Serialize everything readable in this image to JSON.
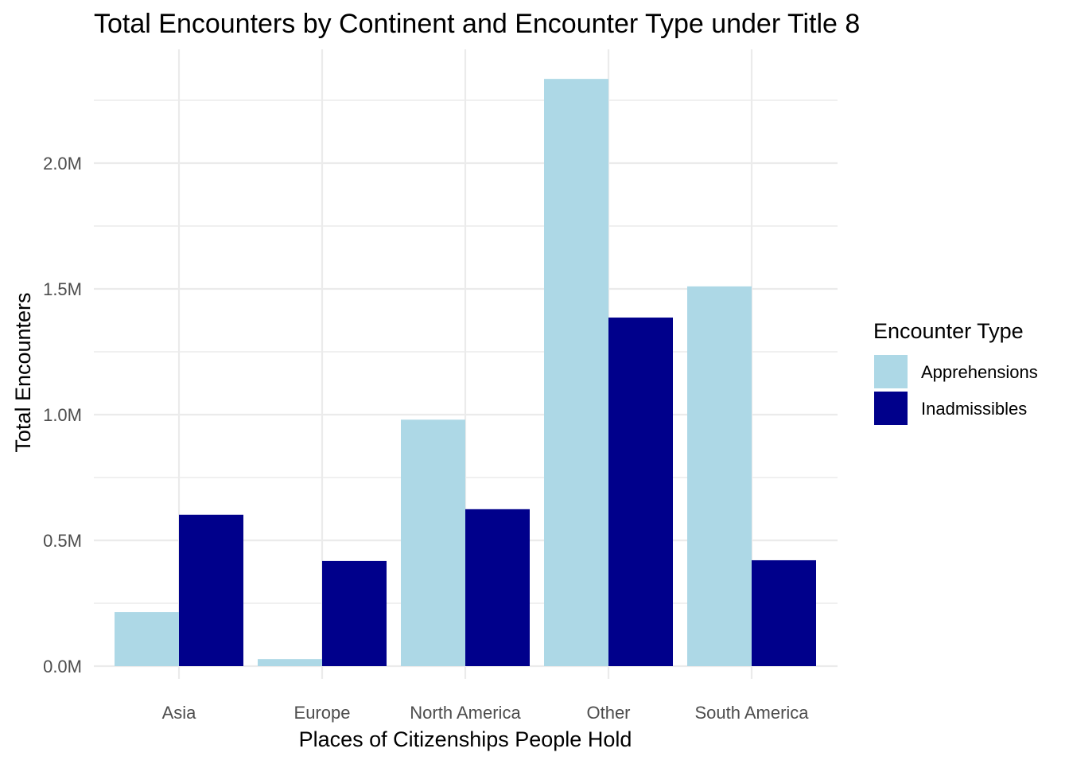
{
  "chart_data": {
    "type": "bar",
    "title": "Total Encounters by Continent and Encounter Type under Title 8",
    "xlabel": "Places of Citizenships People Hold",
    "ylabel": "Total Encounters",
    "categories": [
      "Asia",
      "Europe",
      "North America",
      "Other",
      "South America"
    ],
    "series": [
      {
        "name": "Apprehensions",
        "color": "#add8e6",
        "values": [
          215000,
          28000,
          980000,
          2335000,
          1510000
        ]
      },
      {
        "name": "Inadmissibles",
        "color": "#00008b",
        "values": [
          602000,
          418000,
          624000,
          1386000,
          421000
        ]
      }
    ],
    "ylim": [
      0,
      2335000
    ],
    "yticks": [
      0,
      500000,
      1000000,
      1500000,
      2000000
    ],
    "ytick_labels": [
      "0.0M",
      "0.5M",
      "1.0M",
      "1.5M",
      "2.0M"
    ],
    "grid": true,
    "legend": {
      "title": "Encounter Type",
      "position": "right"
    }
  }
}
